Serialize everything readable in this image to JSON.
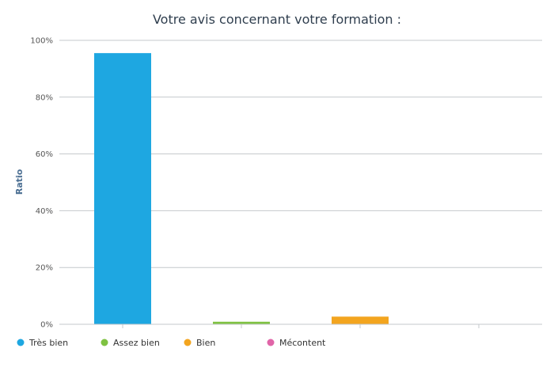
{
  "chart_data": {
    "type": "bar",
    "title": "Votre avis concernant votre formation :",
    "ylabel": "Ratio",
    "xlabel": "",
    "ylim": [
      0,
      100
    ],
    "yticks": [
      0,
      20,
      40,
      60,
      80,
      100
    ],
    "ytick_suffix": "%",
    "grid": true,
    "legend_position": "bottom-left",
    "categories": [
      "Très bien",
      "Assez bien",
      "Bien",
      "Mécontent"
    ],
    "values": [
      95.5,
      0.9,
      2.7,
      0
    ],
    "colors": [
      "#1ea7e1",
      "#7fc242",
      "#f3a51f",
      "#e065a8"
    ]
  }
}
